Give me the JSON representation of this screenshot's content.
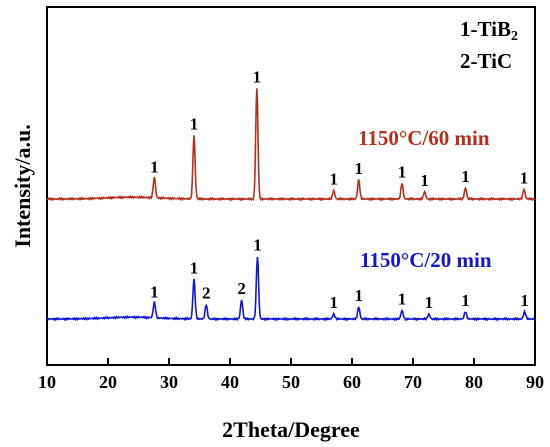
{
  "chart_data": {
    "type": "line",
    "xlabel": "2Theta/Degree",
    "ylabel": "Intensity/a.u.",
    "xlim": [
      10,
      90
    ],
    "xticks": [
      10,
      20,
      30,
      40,
      50,
      60,
      70,
      80,
      90
    ],
    "grid": false,
    "legend": {
      "position": "top-right",
      "entries": [
        {
          "number": "1",
          "phase": "TiB",
          "subscript": "2"
        },
        {
          "number": "2",
          "phase": "TiC",
          "subscript": ""
        }
      ]
    },
    "series": [
      {
        "name": "1150°C/60 min",
        "color": "#b5301f",
        "peaks": [
          {
            "x": 27.6,
            "height": 0.17,
            "label": "1"
          },
          {
            "x": 34.1,
            "height": 0.53,
            "label": "1"
          },
          {
            "x": 44.4,
            "height": 0.92,
            "label": "1"
          },
          {
            "x": 57.0,
            "height": 0.07,
            "label": "1"
          },
          {
            "x": 61.1,
            "height": 0.16,
            "label": "1"
          },
          {
            "x": 68.2,
            "height": 0.13,
            "label": "1"
          },
          {
            "x": 71.9,
            "height": 0.06,
            "label": "1"
          },
          {
            "x": 78.6,
            "height": 0.09,
            "label": "1"
          },
          {
            "x": 88.2,
            "height": 0.08,
            "label": "1"
          }
        ]
      },
      {
        "name": "1150°C/20 min",
        "color": "#1515d6",
        "peaks": [
          {
            "x": 27.6,
            "height": 0.13,
            "label": "1"
          },
          {
            "x": 34.1,
            "height": 0.33,
            "label": "1"
          },
          {
            "x": 36.1,
            "height": 0.12,
            "label": "2"
          },
          {
            "x": 41.9,
            "height": 0.16,
            "label": "2"
          },
          {
            "x": 44.5,
            "height": 0.52,
            "label": "1"
          },
          {
            "x": 57.0,
            "height": 0.04,
            "label": "1"
          },
          {
            "x": 61.1,
            "height": 0.1,
            "label": "1"
          },
          {
            "x": 68.2,
            "height": 0.07,
            "label": "1"
          },
          {
            "x": 72.6,
            "height": 0.04,
            "label": "1"
          },
          {
            "x": 78.6,
            "height": 0.06,
            "label": "1"
          },
          {
            "x": 88.3,
            "height": 0.06,
            "label": "1"
          }
        ]
      }
    ]
  }
}
